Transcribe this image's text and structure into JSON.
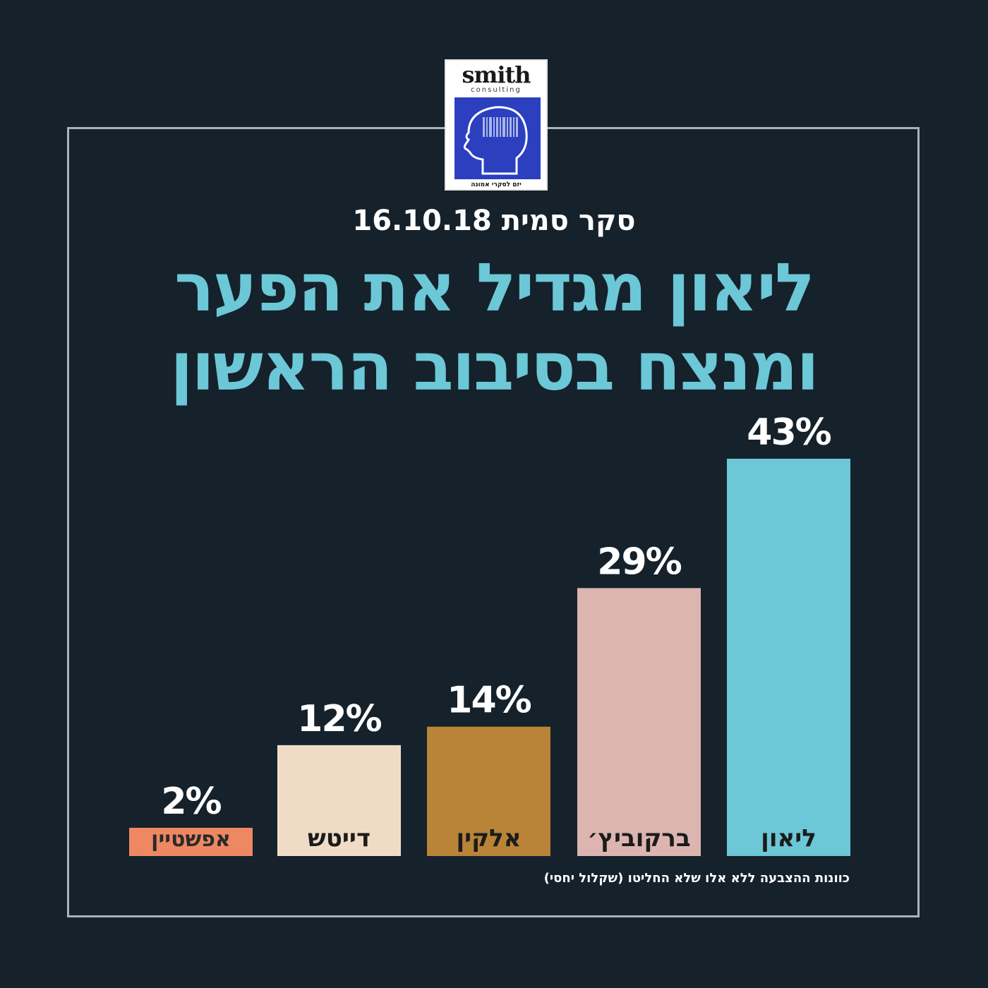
{
  "logo": {
    "brand": "smith",
    "subtitle": "consulting",
    "tagline": "יזם לסקרי אמונה"
  },
  "survey_line": "סקר סמית 16.10.18",
  "headline": {
    "line1": "ליאון מגדיל את הפער",
    "line2": "ומנצח בסיבוב הראשון"
  },
  "footnote": "כוונות ההצבעה ללא אלו שלא החליטו (שקלול יחסי)",
  "chart_data": {
    "type": "bar",
    "categories": [
      "אפשטיין",
      "דייטש",
      "אלקין",
      "ברקוביץ׳",
      "ליאון"
    ],
    "values": [
      2,
      12,
      14,
      29,
      43
    ],
    "value_labels": [
      "2%",
      "12%",
      "14%",
      "29%",
      "43%"
    ],
    "colors": [
      "#ee8863",
      "#f0dcc6",
      "#b98437",
      "#dcb5b0",
      "#6cc7d6"
    ],
    "title": "",
    "xlabel": "",
    "ylabel": "",
    "ylim": [
      0,
      43
    ],
    "grid": false,
    "legend": "none"
  }
}
